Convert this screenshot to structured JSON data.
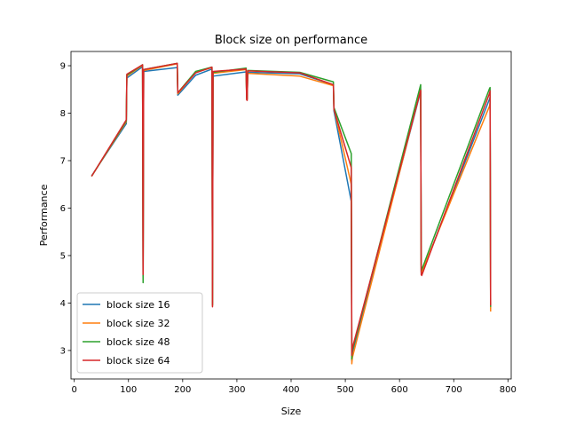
{
  "chart_data": {
    "type": "line",
    "title": "Block size on performance",
    "xlabel": "Size",
    "ylabel": "Performance",
    "xlim": [
      -6,
      806
    ],
    "ylim": [
      2.4,
      9.3
    ],
    "xticks": [
      0,
      100,
      200,
      300,
      400,
      500,
      600,
      700,
      800
    ],
    "yticks": [
      3,
      4,
      5,
      6,
      7,
      8,
      9
    ],
    "grid": false,
    "legend_position": "lower-left",
    "x": [
      32,
      96,
      97,
      126,
      127,
      128,
      190,
      191,
      224,
      254,
      255,
      256,
      317,
      318,
      319,
      320,
      416,
      478,
      479,
      511,
      512,
      513,
      639,
      640,
      641,
      766,
      767,
      768
    ],
    "series": [
      {
        "name": "block size 16",
        "color": "#1f77b4",
        "values": [
          6.68,
          7.78,
          8.74,
          8.98,
          4.55,
          8.88,
          8.96,
          8.38,
          8.8,
          8.93,
          3.98,
          8.78,
          8.87,
          8.34,
          8.32,
          8.86,
          8.83,
          8.6,
          8.05,
          6.14,
          2.78,
          2.95,
          8.46,
          4.65,
          4.62,
          8.3,
          8.34,
          3.88
        ]
      },
      {
        "name": "block size 32",
        "color": "#ff7f0e",
        "values": [
          6.67,
          7.82,
          8.78,
          9.01,
          4.5,
          8.9,
          9.04,
          8.41,
          8.86,
          8.96,
          3.95,
          8.84,
          8.92,
          8.3,
          8.29,
          8.84,
          8.78,
          8.58,
          8.1,
          6.5,
          2.72,
          2.85,
          8.5,
          4.7,
          4.65,
          8.15,
          8.22,
          3.82
        ]
      },
      {
        "name": "block size 48",
        "color": "#2ca02c",
        "values": [
          6.67,
          7.84,
          8.8,
          9.02,
          4.43,
          8.92,
          9.05,
          8.43,
          8.88,
          8.97,
          3.95,
          8.86,
          8.95,
          8.33,
          8.3,
          8.9,
          8.86,
          8.66,
          8.12,
          7.15,
          2.82,
          3.0,
          8.6,
          4.8,
          4.7,
          8.52,
          8.54,
          3.92
        ]
      },
      {
        "name": "block size 64",
        "color": "#d62728",
        "values": [
          6.67,
          7.86,
          8.82,
          9.02,
          4.6,
          8.92,
          9.05,
          8.43,
          8.85,
          8.97,
          3.92,
          8.88,
          8.93,
          8.28,
          8.27,
          8.89,
          8.85,
          8.6,
          8.08,
          6.85,
          2.9,
          3.05,
          8.48,
          4.6,
          4.58,
          8.42,
          8.47,
          3.95
        ]
      }
    ]
  }
}
